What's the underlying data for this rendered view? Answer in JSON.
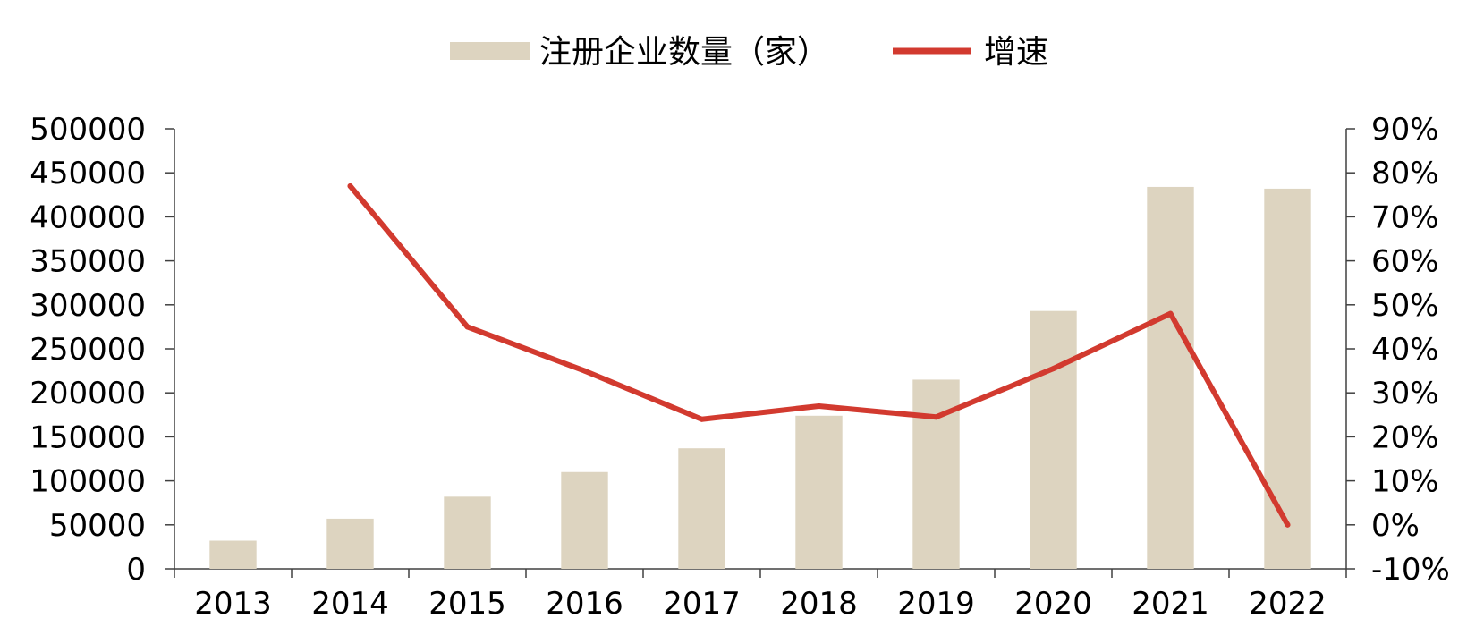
{
  "chart_data": {
    "type": "bar",
    "categories": [
      "2013",
      "2014",
      "2015",
      "2016",
      "2017",
      "2018",
      "2019",
      "2020",
      "2021",
      "2022"
    ],
    "series": [
      {
        "name": "注册企业数量（家）",
        "type": "bar",
        "axis": "left",
        "color": "#ddd4c0",
        "values": [
          32000,
          57000,
          82000,
          110000,
          137000,
          174000,
          215000,
          293000,
          434000,
          432000
        ]
      },
      {
        "name": "增速",
        "type": "line",
        "axis": "right",
        "color": "#d23a2f",
        "values": [
          null,
          0.77,
          0.45,
          0.35,
          0.24,
          0.27,
          0.245,
          0.355,
          0.48,
          0.0
        ]
      }
    ],
    "y_left": {
      "ylim": [
        0,
        500000
      ],
      "ticks": [
        "0",
        "50000",
        "100000",
        "150000",
        "200000",
        "250000",
        "300000",
        "350000",
        "400000",
        "450000",
        "500000"
      ]
    },
    "y_right": {
      "ylim": [
        -0.1,
        0.9
      ],
      "ticks": [
        "-10%",
        "0%",
        "10%",
        "20%",
        "30%",
        "40%",
        "50%",
        "60%",
        "70%",
        "80%",
        "90%"
      ]
    },
    "legend": {
      "position": "top-center"
    },
    "grid": false
  }
}
